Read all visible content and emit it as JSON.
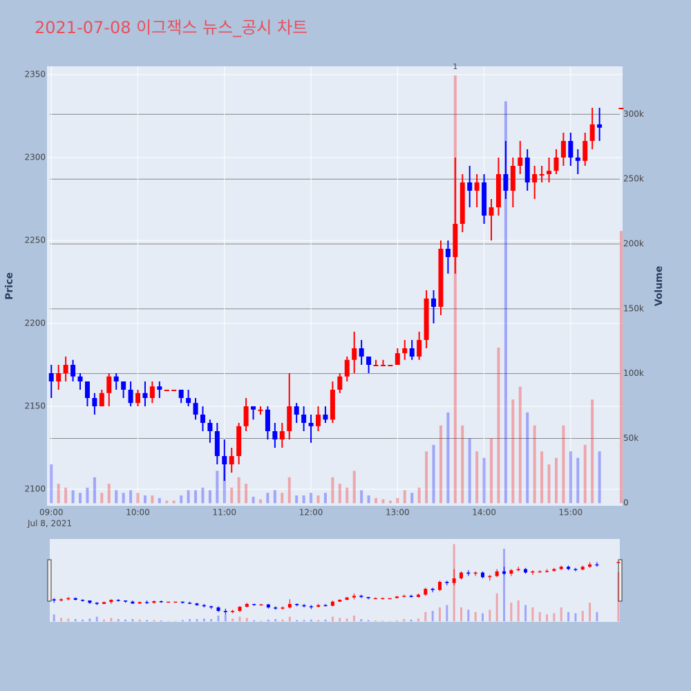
{
  "chart_data": {
    "type": "candlestick",
    "title": "2021-07-08 이그잭스 뉴스_공시 차트",
    "ylabel": "Price",
    "y2label": "Volume",
    "x_date_label": "Jul 8, 2021",
    "increasing_color": "#ff0000",
    "decreasing_color": "#0000ff",
    "xlim": [
      "08:57",
      "15:36"
    ],
    "xticks": [
      "09:00",
      "10:00",
      "11:00",
      "12:00",
      "13:00",
      "14:00",
      "15:00"
    ],
    "ylim": [
      2090,
      2355
    ],
    "yticks": [
      2100,
      2150,
      2200,
      2250,
      2300,
      2350
    ],
    "y2lim": [
      -2000,
      337000
    ],
    "y2ticks": [
      0,
      {
        "value": 50000,
        "label": "50k"
      },
      {
        "value": 100000,
        "label": "100k"
      },
      {
        "value": 150000,
        "label": "150k"
      },
      {
        "value": 200000,
        "label": "200k"
      },
      {
        "value": 250000,
        "label": "250k"
      },
      {
        "value": 300000,
        "label": "300k"
      }
    ],
    "annotations": [
      {
        "x": "13:40",
        "text": "1"
      }
    ],
    "x": [
      "09:00",
      "09:05",
      "09:10",
      "09:15",
      "09:20",
      "09:25",
      "09:30",
      "09:35",
      "09:40",
      "09:45",
      "09:50",
      "09:55",
      "10:00",
      "10:05",
      "10:10",
      "10:15",
      "10:20",
      "10:25",
      "10:30",
      "10:35",
      "10:40",
      "10:45",
      "10:50",
      "10:55",
      "11:00",
      "11:05",
      "11:10",
      "11:15",
      "11:20",
      "11:25",
      "11:30",
      "11:35",
      "11:40",
      "11:45",
      "11:50",
      "11:55",
      "12:00",
      "12:05",
      "12:10",
      "12:15",
      "12:20",
      "12:25",
      "12:30",
      "12:35",
      "12:40",
      "12:45",
      "12:50",
      "12:55",
      "13:00",
      "13:05",
      "13:10",
      "13:15",
      "13:20",
      "13:25",
      "13:30",
      "13:35",
      "13:40",
      "13:45",
      "13:50",
      "13:55",
      "14:00",
      "14:05",
      "14:10",
      "14:15",
      "14:20",
      "14:25",
      "14:30",
      "14:35",
      "14:40",
      "14:45",
      "14:50",
      "14:55",
      "15:00",
      "15:05",
      "15:10",
      "15:15",
      "15:20",
      "15:35"
    ],
    "open": [
      2170,
      2165,
      2170,
      2175,
      2168,
      2165,
      2155,
      2150,
      2158,
      2168,
      2165,
      2160,
      2152,
      2158,
      2155,
      2162,
      2160,
      2160,
      2160,
      2155,
      2152,
      2145,
      2140,
      2135,
      2120,
      2115,
      2120,
      2138,
      2150,
      2148,
      2148,
      2135,
      2130,
      2135,
      2150,
      2145,
      2140,
      2138,
      2145,
      2142,
      2160,
      2168,
      2178,
      2185,
      2180,
      2175,
      2175,
      2175,
      2175,
      2182,
      2185,
      2180,
      2190,
      2215,
      2210,
      2245,
      2240,
      2260,
      2285,
      2280,
      2285,
      2265,
      2270,
      2290,
      2280,
      2295,
      2300,
      2285,
      2290,
      2290,
      2292,
      2300,
      2310,
      2300,
      2298,
      2310,
      2320,
      2330
    ],
    "high": [
      2175,
      2175,
      2180,
      2178,
      2170,
      2165,
      2158,
      2160,
      2170,
      2170,
      2165,
      2165,
      2160,
      2165,
      2165,
      2165,
      2160,
      2160,
      2160,
      2160,
      2155,
      2150,
      2142,
      2140,
      2130,
      2125,
      2140,
      2155,
      2150,
      2150,
      2150,
      2140,
      2140,
      2170,
      2152,
      2150,
      2145,
      2150,
      2150,
      2165,
      2170,
      2180,
      2195,
      2190,
      2180,
      2178,
      2178,
      2175,
      2185,
      2190,
      2190,
      2195,
      2220,
      2220,
      2250,
      2250,
      2300,
      2290,
      2295,
      2290,
      2290,
      2275,
      2300,
      2310,
      2300,
      2310,
      2305,
      2295,
      2295,
      2300,
      2305,
      2315,
      2315,
      2305,
      2315,
      2330,
      2330,
      2330
    ],
    "low": [
      2155,
      2160,
      2165,
      2165,
      2160,
      2150,
      2145,
      2150,
      2150,
      2160,
      2155,
      2150,
      2150,
      2150,
      2152,
      2155,
      2160,
      2160,
      2152,
      2150,
      2142,
      2135,
      2128,
      2115,
      2105,
      2110,
      2115,
      2135,
      2142,
      2145,
      2130,
      2125,
      2125,
      2130,
      2140,
      2135,
      2128,
      2135,
      2140,
      2140,
      2158,
      2165,
      2170,
      2175,
      2170,
      2175,
      2175,
      2175,
      2175,
      2178,
      2178,
      2178,
      2185,
      2200,
      2205,
      2230,
      2230,
      2255,
      2270,
      2270,
      2260,
      2250,
      2265,
      2275,
      2270,
      2290,
      2280,
      2275,
      2285,
      2285,
      2290,
      2295,
      2295,
      2290,
      2295,
      2305,
      2310,
      2330
    ],
    "close": [
      2165,
      2170,
      2175,
      2168,
      2165,
      2155,
      2150,
      2158,
      2168,
      2165,
      2160,
      2152,
      2158,
      2155,
      2162,
      2160,
      2160,
      2160,
      2155,
      2152,
      2145,
      2140,
      2135,
      2120,
      2115,
      2120,
      2138,
      2150,
      2148,
      2148,
      2135,
      2130,
      2135,
      2150,
      2145,
      2140,
      2138,
      2145,
      2142,
      2160,
      2168,
      2178,
      2185,
      2180,
      2175,
      2175,
      2175,
      2175,
      2182,
      2185,
      2180,
      2190,
      2215,
      2210,
      2245,
      2240,
      2260,
      2285,
      2280,
      2285,
      2265,
      2270,
      2290,
      2280,
      2295,
      2300,
      2285,
      2290,
      2290,
      2292,
      2300,
      2310,
      2300,
      2298,
      2310,
      2320,
      2318,
      2330
    ],
    "volume": [
      30000,
      15000,
      12000,
      10000,
      8000,
      12000,
      20000,
      8000,
      15000,
      10000,
      8000,
      10000,
      8000,
      6000,
      6000,
      4000,
      2000,
      2000,
      6000,
      10000,
      10000,
      12000,
      10000,
      25000,
      30000,
      12000,
      20000,
      15000,
      5000,
      3000,
      8000,
      10000,
      8000,
      20000,
      6000,
      6000,
      8000,
      6000,
      8000,
      20000,
      15000,
      12000,
      25000,
      10000,
      6000,
      4000,
      3000,
      2000,
      4000,
      10000,
      8000,
      12000,
      40000,
      45000,
      60000,
      70000,
      330000,
      60000,
      50000,
      40000,
      35000,
      50000,
      120000,
      310000,
      80000,
      90000,
      70000,
      60000,
      40000,
      30000,
      35000,
      60000,
      40000,
      35000,
      45000,
      80000,
      40000,
      210000
    ]
  }
}
